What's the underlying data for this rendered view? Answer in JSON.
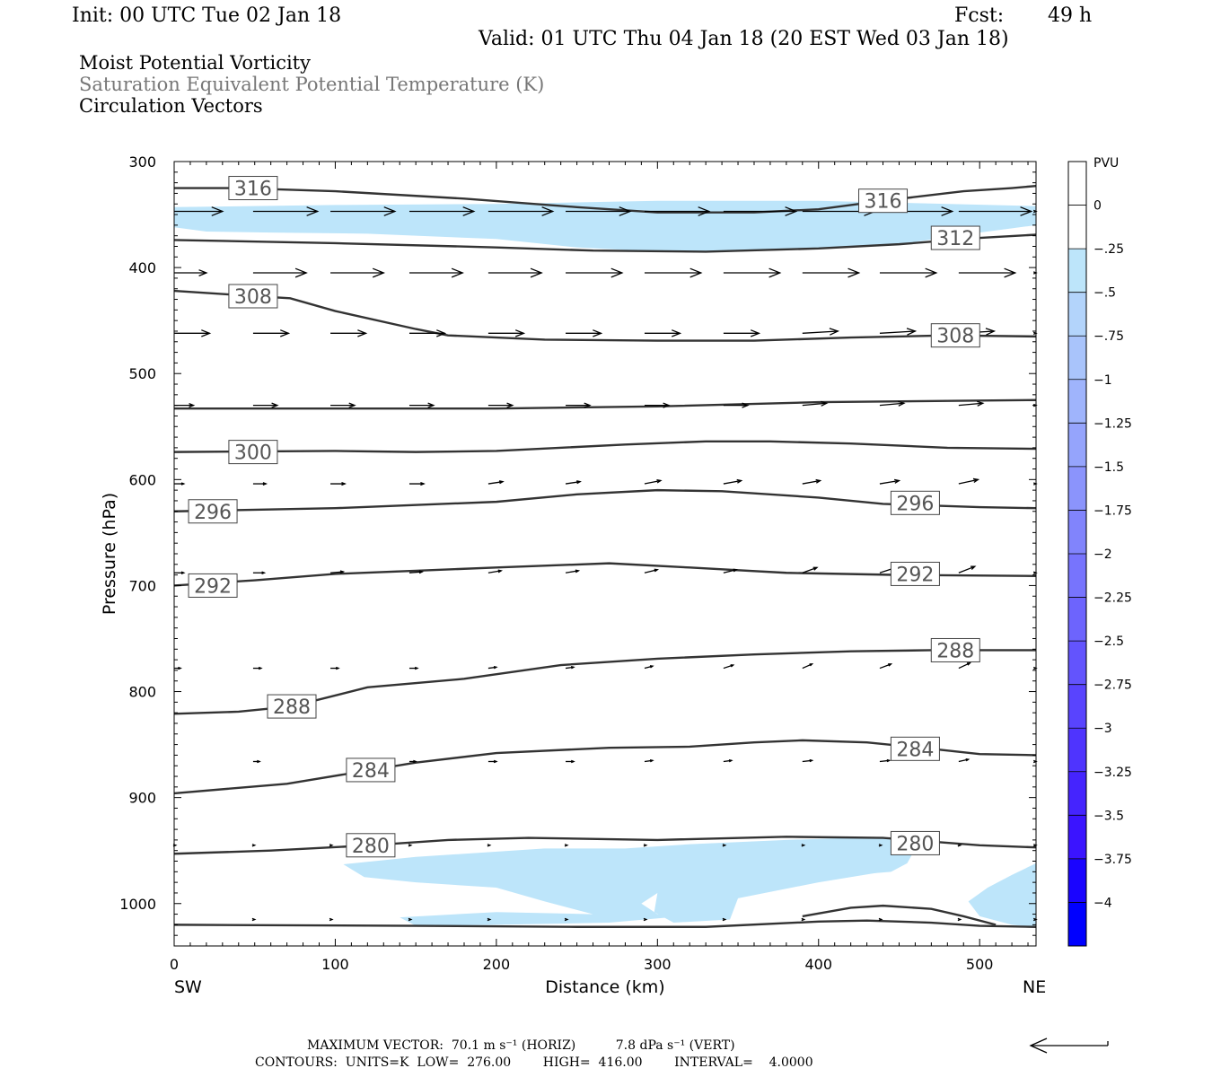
{
  "header": {
    "init": "Init: 00 UTC Tue 02 Jan 18",
    "fcst_label": "Fcst:",
    "fcst_value": "49 h",
    "valid": "Valid: 01 UTC Thu 04 Jan 18 (20 EST Wed 03 Jan 18)"
  },
  "field_titles": [
    "Moist Potential Vorticity",
    "Saturation Equivalent Potential Temperature (K)",
    "Circulation Vectors"
  ],
  "colors": {
    "contour": "#333333",
    "axis": "#000000",
    "shade_light": "#bde5fa"
  },
  "chart_data": {
    "type": "cross-section",
    "xlabel": "Distance (km)",
    "ylabel": "Pressure (hPa)",
    "xlim": [
      0,
      535
    ],
    "ylim": [
      300,
      1040
    ],
    "x_ticks": [
      0,
      100,
      200,
      300,
      400,
      500
    ],
    "y_ticks": [
      300,
      400,
      500,
      600,
      700,
      800,
      900,
      1000
    ],
    "x_end_labels": {
      "left": "SW",
      "right": "NE"
    },
    "contours": [
      {
        "label": "316",
        "points": [
          [
            0,
            325
          ],
          [
            40,
            325
          ],
          [
            100,
            328
          ],
          [
            180,
            335
          ],
          [
            250,
            343
          ],
          [
            300,
            348
          ],
          [
            360,
            348
          ],
          [
            400,
            345
          ],
          [
            440,
            337
          ],
          [
            490,
            328
          ],
          [
            520,
            325
          ],
          [
            535,
            323
          ]
        ],
        "labels_at": [
          [
            49,
            325
          ],
          [
            440,
            337
          ]
        ]
      },
      {
        "label": "312",
        "points": [
          [
            0,
            374
          ],
          [
            100,
            377
          ],
          [
            200,
            381
          ],
          [
            260,
            384
          ],
          [
            330,
            385
          ],
          [
            400,
            382
          ],
          [
            450,
            378
          ],
          [
            500,
            372
          ],
          [
            535,
            369
          ]
        ],
        "labels_at": [
          [
            485,
            372
          ]
        ]
      },
      {
        "label": "308",
        "points": [
          [
            0,
            422
          ],
          [
            50,
            427
          ],
          [
            72,
            429
          ],
          [
            100,
            441
          ],
          [
            150,
            458
          ],
          [
            170,
            464
          ],
          [
            230,
            468
          ],
          [
            300,
            469
          ],
          [
            360,
            469
          ],
          [
            420,
            466
          ],
          [
            480,
            464
          ],
          [
            535,
            465
          ]
        ],
        "labels_at": [
          [
            49,
            427
          ],
          [
            485,
            464
          ]
        ]
      },
      {
        "label": "",
        "points": [
          [
            0,
            533
          ],
          [
            100,
            533
          ],
          [
            200,
            533
          ],
          [
            300,
            531
          ],
          [
            400,
            527
          ],
          [
            535,
            525
          ]
        ],
        "labels_at": []
      },
      {
        "label": "300",
        "points": [
          [
            0,
            574
          ],
          [
            100,
            573
          ],
          [
            150,
            574
          ],
          [
            200,
            573
          ],
          [
            280,
            567
          ],
          [
            330,
            564
          ],
          [
            370,
            564
          ],
          [
            420,
            566
          ],
          [
            480,
            570
          ],
          [
            535,
            571
          ]
        ],
        "labels_at": [
          [
            49,
            574
          ]
        ]
      },
      {
        "label": "296",
        "points": [
          [
            0,
            630
          ],
          [
            100,
            627
          ],
          [
            200,
            621
          ],
          [
            250,
            614
          ],
          [
            300,
            610
          ],
          [
            340,
            611
          ],
          [
            400,
            617
          ],
          [
            440,
            623
          ],
          [
            500,
            626
          ],
          [
            535,
            627
          ]
        ],
        "labels_at": [
          [
            24,
            630
          ],
          [
            460,
            622
          ]
        ]
      },
      {
        "label": "292",
        "points": [
          [
            0,
            700
          ],
          [
            50,
            695
          ],
          [
            100,
            689
          ],
          [
            150,
            686
          ],
          [
            200,
            683
          ],
          [
            270,
            679
          ],
          [
            320,
            683
          ],
          [
            380,
            688
          ],
          [
            450,
            690
          ],
          [
            535,
            691
          ]
        ],
        "labels_at": [
          [
            24,
            700
          ],
          [
            460,
            689
          ]
        ]
      },
      {
        "label": "288",
        "points": [
          [
            0,
            821
          ],
          [
            40,
            819
          ],
          [
            73,
            814
          ],
          [
            120,
            796
          ],
          [
            180,
            788
          ],
          [
            240,
            775
          ],
          [
            300,
            769
          ],
          [
            360,
            765
          ],
          [
            420,
            762
          ],
          [
            470,
            761
          ],
          [
            535,
            761
          ]
        ],
        "labels_at": [
          [
            73,
            814
          ],
          [
            485,
            761
          ]
        ]
      },
      {
        "label": "284",
        "points": [
          [
            0,
            896
          ],
          [
            70,
            887
          ],
          [
            122,
            874
          ],
          [
            150,
            867
          ],
          [
            200,
            858
          ],
          [
            270,
            853
          ],
          [
            320,
            852
          ],
          [
            360,
            848
          ],
          [
            390,
            846
          ],
          [
            430,
            848
          ],
          [
            470,
            854
          ],
          [
            500,
            859
          ],
          [
            535,
            860
          ]
        ],
        "labels_at": [
          [
            122,
            874
          ],
          [
            460,
            854
          ]
        ]
      },
      {
        "label": "280",
        "points": [
          [
            0,
            953
          ],
          [
            60,
            950
          ],
          [
            122,
            945
          ],
          [
            170,
            940
          ],
          [
            220,
            938
          ],
          [
            300,
            940
          ],
          [
            380,
            937
          ],
          [
            440,
            938
          ],
          [
            500,
            945
          ],
          [
            535,
            947
          ]
        ],
        "labels_at": [
          [
            122,
            945
          ],
          [
            460,
            943
          ]
        ]
      },
      {
        "label": "",
        "points": [
          [
            0,
            1020
          ],
          [
            150,
            1021
          ],
          [
            250,
            1022
          ],
          [
            330,
            1022
          ],
          [
            400,
            1017
          ],
          [
            430,
            1016
          ],
          [
            470,
            1018
          ],
          [
            500,
            1021
          ],
          [
            535,
            1022
          ]
        ],
        "labels_at": []
      },
      {
        "label": "",
        "points": [
          [
            390,
            1012
          ],
          [
            420,
            1004
          ],
          [
            440,
            1002
          ],
          [
            470,
            1005
          ],
          [
            490,
            1012
          ],
          [
            510,
            1020
          ]
        ],
        "labels_at": []
      }
    ],
    "mpv_shading": [
      {
        "level": "-0.25",
        "points": [
          [
            0,
            343
          ],
          [
            100,
            341
          ],
          [
            200,
            340
          ],
          [
            300,
            337
          ],
          [
            400,
            337
          ],
          [
            535,
            342
          ],
          [
            535,
            360
          ],
          [
            500,
            367
          ],
          [
            450,
            378
          ],
          [
            400,
            382
          ],
          [
            350,
            385
          ],
          [
            300,
            385
          ],
          [
            250,
            381
          ],
          [
            200,
            373
          ],
          [
            150,
            370
          ],
          [
            120,
            368
          ],
          [
            60,
            367
          ],
          [
            20,
            366
          ],
          [
            0,
            362
          ]
        ]
      },
      {
        "level": "-0.25",
        "points": [
          [
            105,
            963
          ],
          [
            150,
            956
          ],
          [
            230,
            948
          ],
          [
            280,
            948
          ],
          [
            320,
            944
          ],
          [
            380,
            940
          ],
          [
            440,
            937
          ],
          [
            462,
            943
          ],
          [
            455,
            962
          ],
          [
            445,
            970
          ],
          [
            350,
            982
          ],
          [
            300,
            990
          ],
          [
            290,
            1000
          ],
          [
            300,
            1010
          ],
          [
            330,
            1010
          ],
          [
            270,
            1018
          ],
          [
            200,
            1020
          ],
          [
            150,
            1021
          ],
          [
            140,
            1013
          ],
          [
            200,
            1008
          ],
          [
            260,
            1010
          ],
          [
            230,
            998
          ],
          [
            200,
            985
          ],
          [
            150,
            980
          ],
          [
            118,
            975
          ]
        ]
      },
      {
        "level": "-0.25",
        "points": [
          [
            300,
            990
          ],
          [
            310,
            972
          ],
          [
            340,
            964
          ],
          [
            360,
            957
          ],
          [
            380,
            944
          ],
          [
            430,
            940
          ],
          [
            440,
            970
          ],
          [
            400,
            980
          ],
          [
            350,
            995
          ],
          [
            345,
            1015
          ],
          [
            310,
            1018
          ],
          [
            298,
            1008
          ]
        ]
      },
      {
        "level": "-0.25",
        "points": [
          [
            493,
            998
          ],
          [
            505,
            985
          ],
          [
            520,
            973
          ],
          [
            535,
            962
          ],
          [
            535,
            1022
          ],
          [
            520,
            1020
          ],
          [
            500,
            1012
          ]
        ]
      }
    ],
    "mpv_colorbar": {
      "unit": "PVU",
      "labels": [
        "0",
        "-.25",
        "-.5",
        "-.75",
        "-1",
        "-1.25",
        "-1.5",
        "-1.75",
        "-2",
        "-2.25",
        "-2.5",
        "-2.75",
        "-3",
        "-3.25",
        "-3.5",
        "-3.75",
        "-4"
      ],
      "colors": [
        "#ffffff",
        "#ffffff",
        "#bde5fa",
        "#b3d4fb",
        "#a9c4fb",
        "#9fb4fc",
        "#95a4fc",
        "#8b94fc",
        "#8184fc",
        "#7774fd",
        "#6d64fd",
        "#6354fd",
        "#5944fe",
        "#4f34fe",
        "#4524fe",
        "#3b14ff",
        "#1a04ff",
        "#0000ff"
      ]
    },
    "vectors_levels": [
      347,
      405,
      462,
      530,
      604,
      688,
      778,
      866,
      945,
      1015
    ],
    "vectors_x": [
      0,
      49,
      97,
      146,
      195,
      243,
      292,
      341,
      390,
      438,
      487,
      535
    ],
    "vector_lengths_km": [
      [
        30,
        40,
        40,
        40,
        40,
        40,
        40,
        45,
        45,
        45,
        45,
        45
      ],
      [
        20,
        33,
        33,
        33,
        33,
        35,
        35,
        35,
        35,
        35,
        35,
        35
      ],
      [
        22,
        22,
        22,
        22,
        22,
        22,
        22,
        22,
        22,
        22,
        22,
        22
      ],
      [
        12,
        15,
        15,
        15,
        15,
        15,
        15,
        15,
        15,
        15,
        15,
        15
      ],
      [
        6,
        8,
        9,
        9,
        9,
        9,
        10,
        11,
        11,
        12,
        12,
        12
      ],
      [
        6,
        7,
        8,
        8,
        8,
        8,
        8,
        8,
        9,
        10,
        10,
        10
      ],
      [
        4,
        5,
        5,
        5,
        5,
        5,
        5,
        6,
        6,
        7,
        7,
        7
      ],
      [
        0,
        4,
        0,
        4,
        5,
        5,
        5,
        5,
        6,
        6,
        6,
        6
      ],
      [
        1,
        1,
        1,
        1,
        1,
        1,
        1,
        1,
        1,
        1,
        1,
        1
      ],
      [
        0,
        1,
        1,
        1,
        1,
        1,
        1,
        1,
        1,
        1,
        1,
        1
      ]
    ],
    "vector_tilt_hpa": [
      [
        0,
        0,
        0,
        0,
        0,
        0,
        0,
        0,
        0,
        0,
        0,
        0
      ],
      [
        0,
        0,
        0,
        0,
        0,
        0,
        0,
        0,
        0,
        0,
        0,
        0
      ],
      [
        0,
        0,
        0,
        0,
        0,
        0,
        0,
        0,
        -2,
        -2,
        -2,
        0
      ],
      [
        0,
        0,
        0,
        0,
        0,
        0,
        0,
        0,
        -2,
        -2,
        -2,
        0
      ],
      [
        0,
        0,
        0,
        0,
        -2,
        -2,
        -3,
        -3,
        -3,
        -3,
        -4,
        0
      ],
      [
        0,
        0,
        -1,
        -1,
        -2,
        -2,
        -3,
        -3,
        -5,
        -5,
        -6,
        0
      ],
      [
        0,
        0,
        0,
        0,
        -1,
        -1,
        -2,
        -3,
        -4,
        -4,
        -5,
        0
      ],
      [
        0,
        0,
        0,
        0,
        0,
        0,
        -1,
        -1,
        -1,
        -1,
        -2,
        0
      ],
      [
        0,
        0,
        0,
        0,
        0,
        0,
        0,
        0,
        0,
        0,
        0,
        0
      ],
      [
        0,
        0,
        0,
        0,
        0,
        0,
        0,
        0,
        0,
        0,
        0,
        0
      ]
    ]
  },
  "footer": {
    "max_vector": "MAXIMUM VECTOR:  70.1 m s⁻¹ (HORIZ)          7.8 dPa s⁻¹ (VERT)",
    "contours": "CONTOURS:  UNITS=K  LOW=  276.00        HIGH=  416.00        INTERVAL=    4.0000"
  }
}
